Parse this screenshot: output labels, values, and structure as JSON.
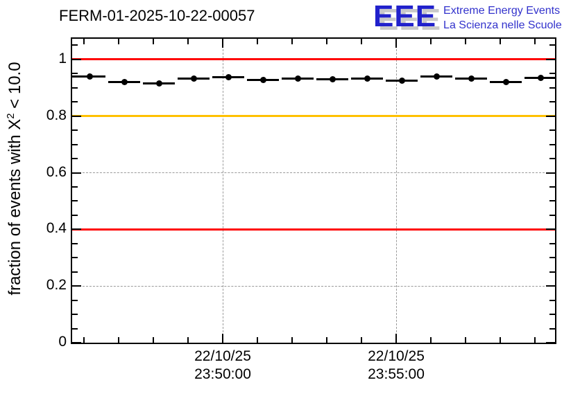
{
  "page": {
    "background": "#ffffff"
  },
  "logo": {
    "acronym": "EEE",
    "tagline1": "Extreme Energy Events",
    "tagline2": "La Scienza nelle Scuole",
    "acronym_color": "#2121cc",
    "tagline_color": "#3232cc",
    "shadow_color": "#c9c9c9"
  },
  "chart_data": {
    "type": "scatter",
    "title": "FERM-01-2025-10-22-00057",
    "ylabel_prefix": "fraction of events with X",
    "ylabel_sup": "2",
    "ylabel_suffix": " < 10.0",
    "xlabel": "",
    "x": [
      "23:46",
      "23:47",
      "23:48",
      "23:49",
      "23:50",
      "23:51",
      "23:52",
      "23:53",
      "23:54",
      "23:55",
      "23:56",
      "23:57",
      "23:58",
      "23:59"
    ],
    "values": [
      0.94,
      0.921,
      0.915,
      0.933,
      0.938,
      0.928,
      0.933,
      0.93,
      0.933,
      0.925,
      0.94,
      0.933,
      0.921,
      0.935
    ],
    "series_color": "#000000",
    "marker": "filled-circle",
    "bin_minutes": 1,
    "ylim": [
      0,
      1.073
    ],
    "yticks": [
      0,
      0.2,
      0.4,
      0.6,
      0.8,
      1
    ],
    "ytick_labels": [
      "0",
      "0.2",
      "0.4",
      "0.6",
      "0.8",
      "1"
    ],
    "y_minor_step": 0.05,
    "x_minor_minutes": 14,
    "xtick_major": [
      {
        "minute": 4,
        "label_line1": "22/10/25",
        "label_line2": "23:50:00"
      },
      {
        "minute": 9,
        "label_line1": "22/10/25",
        "label_line2": "23:55:00"
      }
    ],
    "grid": true,
    "grid_color": "#999999",
    "reference_lines": [
      {
        "value": 1.0,
        "color": "#ff0000"
      },
      {
        "value": 0.8,
        "color": "#ffc000"
      },
      {
        "value": 0.4,
        "color": "#ff0000"
      }
    ]
  }
}
